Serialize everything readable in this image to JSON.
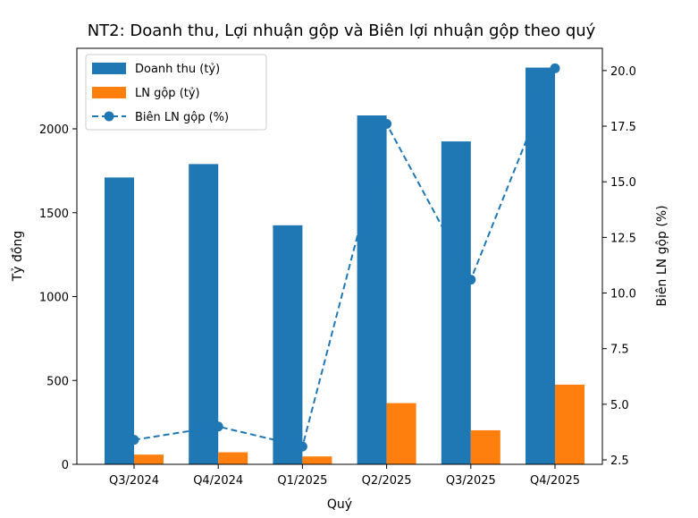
{
  "chart_data": {
    "type": "bar",
    "title": "NT2: Doanh thu, Lợi nhuận gộp và Biên lợi nhuận gộp theo quý",
    "xlabel": "Quý",
    "ylabel": "Tỷ đồng",
    "y2label": "Biên LN gộp (%)",
    "categories": [
      "Q3/2024",
      "Q4/2024",
      "Q1/2025",
      "Q2/2025",
      "Q3/2025",
      "Q4/2025"
    ],
    "ylim": [
      0,
      2480
    ],
    "y2lim": [
      2.3,
      21.0
    ],
    "yticks": [
      0,
      500,
      1000,
      1500,
      2000
    ],
    "y2ticks": [
      2.5,
      5.0,
      7.5,
      10.0,
      12.5,
      15.0,
      17.5,
      20.0
    ],
    "y2tick_labels": [
      "2.5",
      "5.0",
      "7.5",
      "10.0",
      "12.5",
      "15.0",
      "17.5",
      "20.0"
    ],
    "series": [
      {
        "name": "Doanh thu (tỷ)",
        "kind": "bar",
        "axis": "left",
        "color": "#1f77b4",
        "values": [
          1710,
          1790,
          1425,
          2080,
          1925,
          2365
        ]
      },
      {
        "name": "LN gộp (tỷ)",
        "kind": "bar",
        "axis": "left",
        "color": "#ff7f0e",
        "values": [
          58,
          72,
          47,
          365,
          203,
          475
        ]
      },
      {
        "name": "Biên LN gộp (%)",
        "kind": "line",
        "axis": "right",
        "color": "#1f77b4",
        "line_style": "dashed",
        "marker": "circle",
        "values": [
          3.4,
          4.0,
          3.1,
          17.6,
          10.6,
          20.1
        ]
      }
    ],
    "legend_position": "top-left",
    "grid": false
  }
}
